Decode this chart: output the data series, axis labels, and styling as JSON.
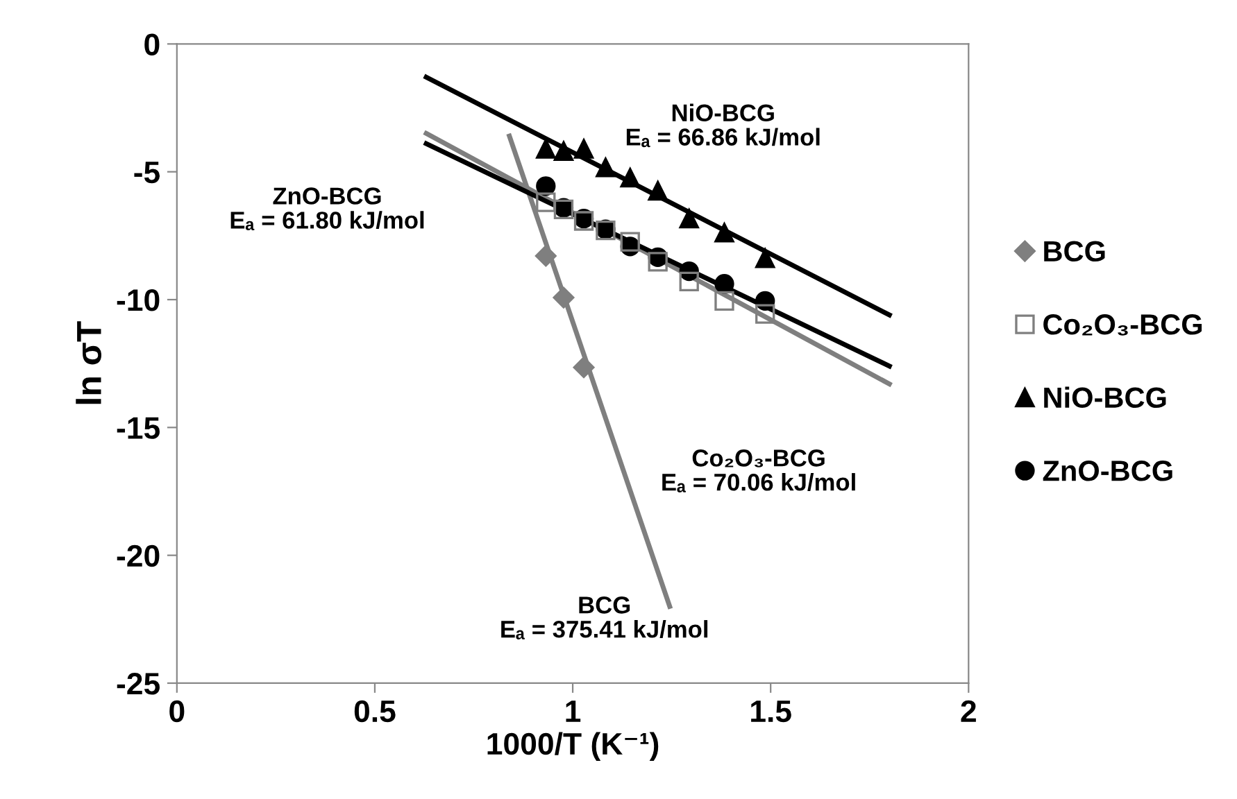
{
  "chart_data": {
    "type": "scatter",
    "xlabel": "1000/T (K⁻¹)",
    "ylabel": "ln σT",
    "xlim": [
      0,
      2
    ],
    "xticks": [
      0,
      0.5,
      1,
      1.5,
      2
    ],
    "ylim": [
      -25,
      0
    ],
    "yticks": [
      -25,
      -20,
      -15,
      -10,
      -5,
      0
    ],
    "grid": false,
    "legend": "right",
    "series": [
      {
        "name": "BCG",
        "color": "#7f7f7f",
        "marker": "diamond",
        "x": [
          0.932,
          0.977,
          1.028
        ],
        "values": [
          -8.29,
          -9.92,
          -12.65
        ]
      },
      {
        "name": "Co₂O₃-BCG",
        "color": "#7f7f7f",
        "marker": "square",
        "x": [
          0.932,
          0.977,
          1.028,
          1.083,
          1.145,
          1.215,
          1.294,
          1.383,
          1.486
        ],
        "values": [
          -6.19,
          -6.47,
          -6.92,
          -7.29,
          -7.74,
          -8.52,
          -9.29,
          -10.05,
          -10.56
        ]
      },
      {
        "name": "NiO-BCG",
        "color": "#000000",
        "marker": "triangle",
        "x": [
          0.932,
          0.977,
          1.028,
          1.083,
          1.145,
          1.215,
          1.294,
          1.383,
          1.486
        ],
        "values": [
          -4.1,
          -4.19,
          -4.1,
          -4.83,
          -5.23,
          -5.74,
          -6.83,
          -7.38,
          -8.38
        ]
      },
      {
        "name": "ZnO-BCG",
        "color": "#000000",
        "marker": "circle",
        "x": [
          0.932,
          0.977,
          1.028,
          1.083,
          1.145,
          1.215,
          1.294,
          1.383,
          1.486
        ],
        "values": [
          -5.56,
          -6.41,
          -6.83,
          -7.25,
          -7.92,
          -8.34,
          -8.89,
          -9.38,
          -10.05
        ]
      },
      {
        "type": "line",
        "color": "#7f7f7f",
        "x": [
          0.84,
          1.245
        ],
        "values": [
          -3.6,
          -22.0
        ]
      },
      {
        "type": "line",
        "color": "#7f7f7f",
        "x": [
          0.63,
          1.8
        ],
        "values": [
          -3.5,
          -13.3
        ]
      },
      {
        "type": "line",
        "color": "#000000",
        "x": [
          0.63,
          1.8
        ],
        "values": [
          -1.3,
          -10.6
        ]
      },
      {
        "type": "line",
        "color": "#000000",
        "x": [
          0.63,
          1.8
        ],
        "values": [
          -3.9,
          -12.6
        ]
      }
    ],
    "annotations": [
      "NiO-BCG\nEₐ = 66.86 kJ/mol",
      "ZnO-BCG\nEₐ = 61.80 kJ/mol",
      "Co₂O₃-BCG\nEₐ = 70.06 kJ/mol",
      "BCG\nEₐ = 375.41 kJ/mol"
    ]
  }
}
